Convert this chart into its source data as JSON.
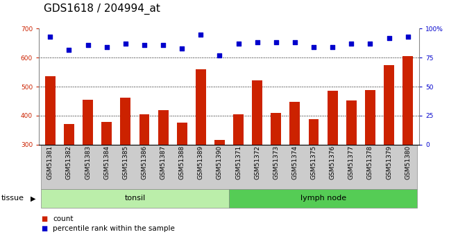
{
  "title": "GDS1618 / 204994_at",
  "samples": [
    "GSM51381",
    "GSM51382",
    "GSM51383",
    "GSM51384",
    "GSM51385",
    "GSM51386",
    "GSM51387",
    "GSM51388",
    "GSM51389",
    "GSM51390",
    "GSM51371",
    "GSM51372",
    "GSM51373",
    "GSM51374",
    "GSM51375",
    "GSM51376",
    "GSM51377",
    "GSM51378",
    "GSM51379",
    "GSM51380"
  ],
  "counts": [
    537,
    370,
    455,
    378,
    462,
    405,
    420,
    376,
    560,
    315,
    405,
    522,
    410,
    447,
    388,
    487,
    452,
    488,
    575,
    605
  ],
  "percentiles": [
    93,
    82,
    86,
    84,
    87,
    86,
    86,
    83,
    95,
    77,
    87,
    88,
    88,
    88,
    84,
    84,
    87,
    87,
    92,
    93
  ],
  "tonsil_count": 10,
  "lymph_count": 10,
  "bar_color": "#cc2200",
  "dot_color": "#0000cc",
  "tonsil_bg": "#bbeeaa",
  "lymph_bg": "#55cc55",
  "plot_bg": "#ffffff",
  "tick_area_bg": "#cccccc",
  "ylim_left": [
    300,
    700
  ],
  "ylim_right": [
    0,
    100
  ],
  "yticks_left": [
    300,
    400,
    500,
    600,
    700
  ],
  "yticks_right": [
    0,
    25,
    50,
    75,
    100
  ],
  "grid_values": [
    400,
    500,
    600
  ],
  "legend_count_label": "count",
  "legend_pct_label": "percentile rank within the sample",
  "tissue_label": "tissue",
  "tonsil_label": "tonsil",
  "lymph_label": "lymph node",
  "title_fontsize": 11,
  "tick_fontsize": 6.5,
  "label_fontsize": 8
}
